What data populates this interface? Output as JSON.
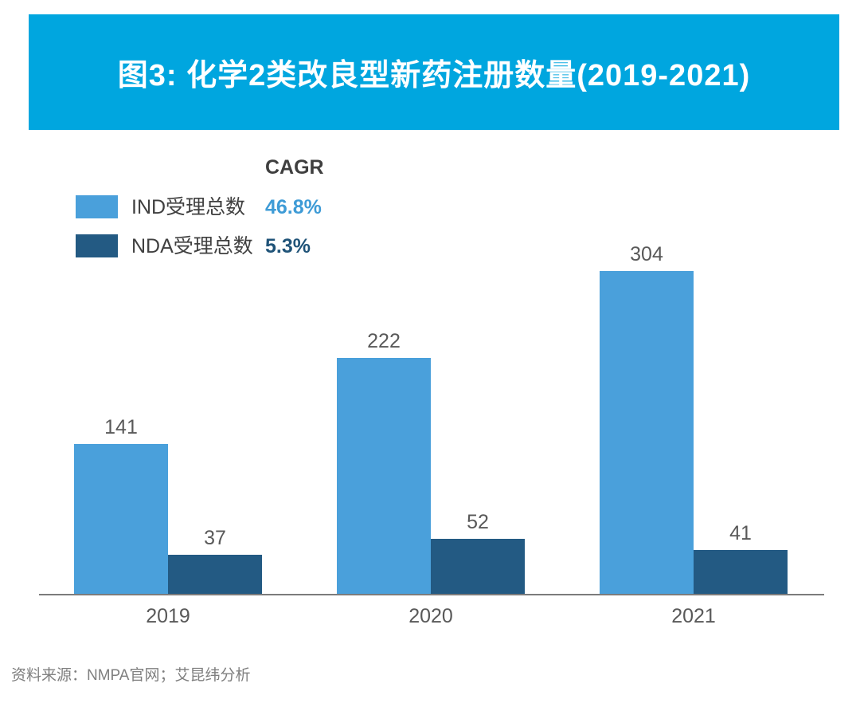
{
  "header": {
    "title": "图3: 化学2类改良型新药注册数量(2019-2021)"
  },
  "legend": {
    "cagr_heading": "CAGR",
    "items": [
      {
        "label": "IND受理总数",
        "cagr": "46.8%",
        "swatch_color": "#4AA0DB",
        "value_color": "#3E9BD6"
      },
      {
        "label": "NDA受理总数",
        "cagr": "5.3%",
        "swatch_color": "#235A83",
        "value_color": "#1F5378"
      }
    ]
  },
  "chart_data": {
    "type": "bar",
    "title": "图3: 化学2类改良型新药注册数量(2019-2021)",
    "categories": [
      "2019",
      "2020",
      "2021"
    ],
    "series": [
      {
        "name": "IND受理总数",
        "values": [
          141,
          222,
          304
        ],
        "color": "#4AA0DB",
        "cagr": "46.8%"
      },
      {
        "name": "NDA受理总数",
        "values": [
          37,
          52,
          41
        ],
        "color": "#235A83",
        "cagr": "5.3%"
      }
    ],
    "data_labels": true,
    "grid": false,
    "y_axis_visible": false,
    "ylim": [
      0,
      320
    ],
    "legend_position": "top-left",
    "xlabel": "",
    "ylabel": ""
  },
  "footer": {
    "source": "资料来源：NMPA官网；艾昆纬分析"
  },
  "colors": {
    "banner": "#00A6DF",
    "title_text": "#FFFFFF",
    "cagr_heading": "#3F3F3F",
    "legend_text": "#404040",
    "value_label": "#595959",
    "tick_label": "#595959",
    "axis_line": "#7C7C7C",
    "footer_text": "#7F7F7F"
  }
}
